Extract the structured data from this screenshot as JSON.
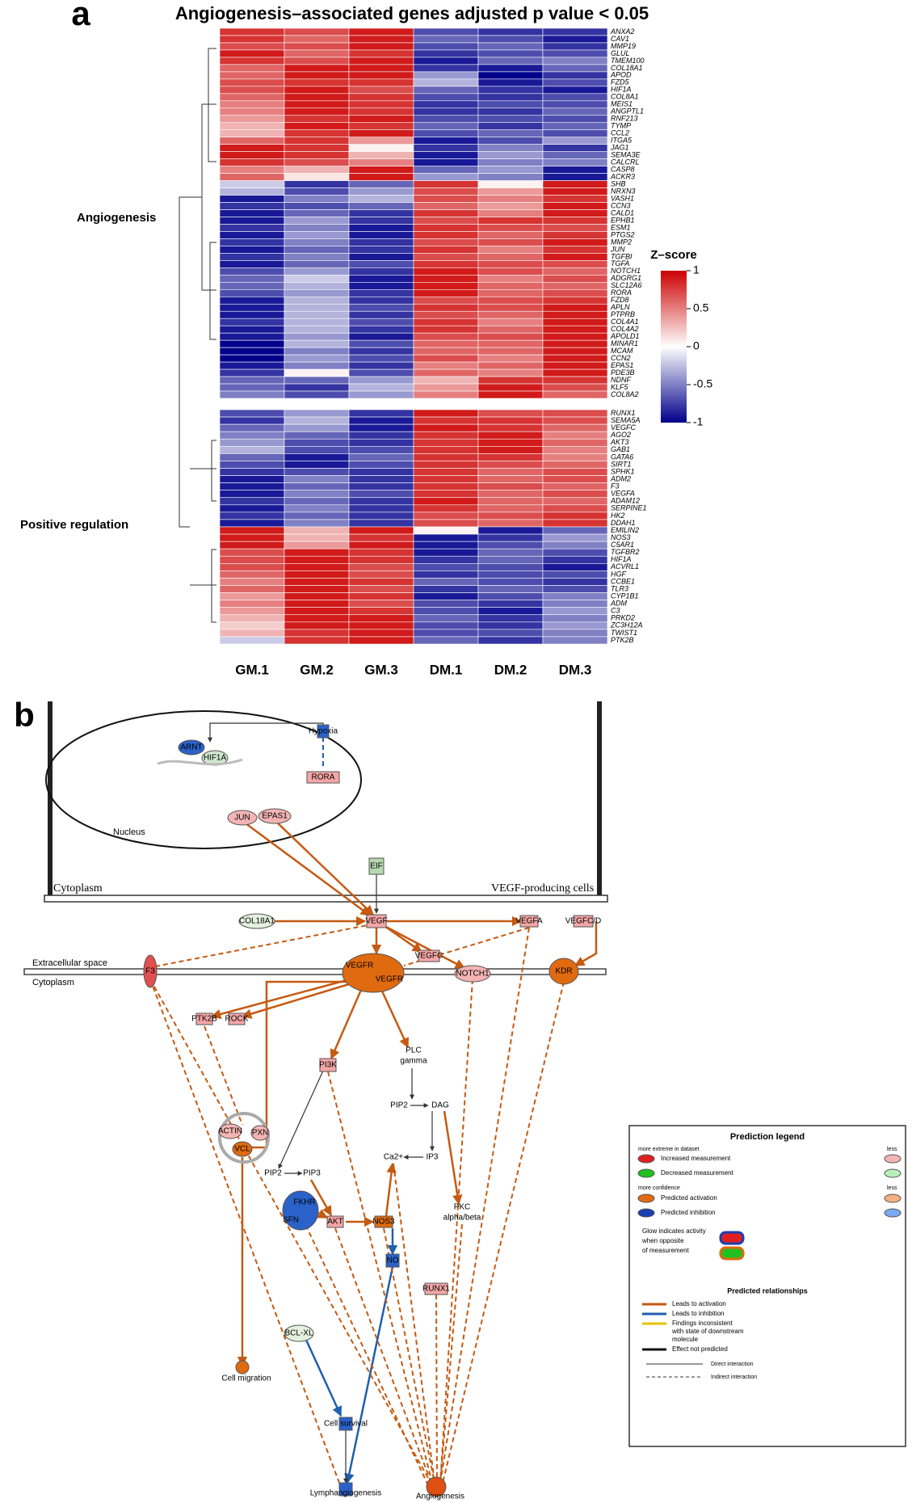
{
  "chart_data": {
    "type": "heatmap",
    "panel_label": "a",
    "title": "Angiogenesis–associated genes adjusted p value < 0.05",
    "columns": [
      "GM.1",
      "GM.2",
      "GM.3",
      "DM.1",
      "DM.2",
      "DM.3"
    ],
    "colorbar": {
      "title": "Z–score",
      "lim": [
        -1,
        1
      ],
      "ticks": [
        1,
        0.5,
        0,
        -0.5,
        -1
      ],
      "colors": [
        "#00008b",
        "#ffffff",
        "#cc0000"
      ]
    },
    "row_groups": [
      {
        "label": "Angiogenesis",
        "rows": [
          {
            "name": "ANXA2",
            "values": [
              0.8,
              0.7,
              0.9,
              -0.7,
              -0.8,
              -0.8
            ]
          },
          {
            "name": "CAV1",
            "values": [
              0.8,
              0.6,
              0.9,
              -0.6,
              -0.7,
              -0.9
            ]
          },
          {
            "name": "MMP19",
            "values": [
              0.7,
              0.7,
              0.9,
              -0.7,
              -0.6,
              -0.8
            ]
          },
          {
            "name": "GLUL",
            "values": [
              0.9,
              0.6,
              0.8,
              -0.8,
              -0.7,
              -0.7
            ]
          },
          {
            "name": "TMEM100",
            "values": [
              0.8,
              0.7,
              0.9,
              -0.9,
              -0.6,
              -0.5
            ]
          },
          {
            "name": "COL18A1",
            "values": [
              0.6,
              0.9,
              0.9,
              -0.8,
              -0.9,
              -0.6
            ]
          },
          {
            "name": "APOD",
            "values": [
              0.6,
              0.9,
              0.9,
              -0.4,
              -1,
              -0.8
            ]
          },
          {
            "name": "FZD5",
            "values": [
              0.7,
              0.8,
              0.8,
              -0.3,
              -0.9,
              -0.7
            ]
          },
          {
            "name": "HIF1A",
            "values": [
              0.7,
              0.9,
              0.7,
              -0.6,
              -0.8,
              -0.9
            ]
          },
          {
            "name": "COL8A1",
            "values": [
              0.6,
              0.9,
              0.8,
              -0.7,
              -0.8,
              -0.7
            ]
          },
          {
            "name": "MEIS1",
            "values": [
              0.5,
              0.9,
              0.8,
              -0.8,
              -0.7,
              -0.7
            ]
          },
          {
            "name": "ANGPTL1",
            "values": [
              0.5,
              0.9,
              0.8,
              -0.8,
              -0.8,
              -0.6
            ]
          },
          {
            "name": "RNF213",
            "values": [
              0.4,
              0.8,
              0.9,
              -0.7,
              -0.7,
              -0.7
            ]
          },
          {
            "name": "TYMP",
            "values": [
              0.3,
              0.9,
              0.8,
              -0.6,
              -0.8,
              -0.6
            ]
          },
          {
            "name": "CCL2",
            "values": [
              0.3,
              0.8,
              0.9,
              -0.7,
              -0.6,
              -0.7
            ]
          },
          {
            "name": "ITGA5",
            "values": [
              0.6,
              0.8,
              0.4,
              -0.9,
              -0.7,
              -0.4
            ]
          },
          {
            "name": "JAG1",
            "values": [
              0.9,
              0.8,
              0.05,
              -0.8,
              -0.5,
              -0.8
            ]
          },
          {
            "name": "SEMA3E",
            "values": [
              0.9,
              0.8,
              0.3,
              -0.9,
              -0.4,
              -0.6
            ]
          },
          {
            "name": "CALCRL",
            "values": [
              0.8,
              0.7,
              0.5,
              -0.9,
              -0.5,
              -0.5
            ]
          },
          {
            "name": "CASP8",
            "values": [
              0.5,
              0.3,
              0.9,
              -0.6,
              -0.4,
              -0.9
            ]
          },
          {
            "name": "ACKR3",
            "values": [
              0.6,
              0.1,
              0.9,
              -0.4,
              -0.5,
              -0.9
            ]
          },
          {
            "name": "SHB",
            "values": [
              -0.2,
              -0.8,
              -0.6,
              0.8,
              0.05,
              0.9
            ]
          },
          {
            "name": "NRXN3",
            "values": [
              -0.3,
              -0.7,
              -0.4,
              0.7,
              0.4,
              0.9
            ]
          },
          {
            "name": "VASH1",
            "values": [
              -0.9,
              -0.5,
              -0.3,
              0.7,
              0.5,
              0.8
            ]
          },
          {
            "name": "CCN3",
            "values": [
              -0.8,
              -0.7,
              -0.6,
              0.6,
              0.4,
              0.9
            ]
          },
          {
            "name": "CALD1",
            "values": [
              -0.9,
              -0.6,
              -0.8,
              0.8,
              0.5,
              0.9
            ]
          },
          {
            "name": "EPHB1",
            "values": [
              -0.9,
              -0.4,
              -0.8,
              0.7,
              0.8,
              0.8
            ]
          },
          {
            "name": "ESM1",
            "values": [
              -0.8,
              -0.5,
              -0.9,
              0.8,
              0.7,
              0.7
            ]
          },
          {
            "name": "PTGS2",
            "values": [
              -0.9,
              -0.4,
              -0.9,
              0.8,
              0.6,
              0.8
            ]
          },
          {
            "name": "MMP2",
            "values": [
              -0.8,
              -0.5,
              -0.8,
              0.7,
              0.7,
              0.9
            ]
          },
          {
            "name": "JUN",
            "values": [
              -0.9,
              -0.6,
              -0.8,
              0.8,
              0.5,
              0.8
            ]
          },
          {
            "name": "TGFBI",
            "values": [
              -0.8,
              -0.5,
              -0.9,
              0.7,
              0.6,
              0.9
            ]
          },
          {
            "name": "TGFA",
            "values": [
              -0.9,
              -0.6,
              -0.7,
              0.8,
              0.7,
              0.7
            ]
          },
          {
            "name": "NOTCH1",
            "values": [
              -0.7,
              -0.4,
              -0.8,
              0.9,
              0.7,
              0.6
            ]
          },
          {
            "name": "ADGRG1",
            "values": [
              -0.6,
              -0.2,
              -0.9,
              0.9,
              0.5,
              0.7
            ]
          },
          {
            "name": "SLC12A6",
            "values": [
              -0.6,
              -0.3,
              -0.9,
              0.9,
              0.6,
              0.6
            ]
          },
          {
            "name": "RORA",
            "values": [
              -0.7,
              -0.4,
              -0.8,
              0.9,
              0.6,
              0.7
            ]
          },
          {
            "name": "FZD8",
            "values": [
              -0.9,
              -0.3,
              -0.8,
              0.7,
              0.7,
              0.8
            ]
          },
          {
            "name": "APLN",
            "values": [
              -0.9,
              -0.3,
              -0.7,
              0.8,
              0.7,
              0.9
            ]
          },
          {
            "name": "PTPRB",
            "values": [
              -0.9,
              -0.3,
              -0.8,
              0.7,
              0.6,
              0.9
            ]
          },
          {
            "name": "COL4A1",
            "values": [
              -0.8,
              -0.3,
              -0.7,
              0.8,
              0.5,
              0.9
            ]
          },
          {
            "name": "COL4A2",
            "values": [
              -0.9,
              -0.3,
              -0.8,
              0.8,
              0.6,
              0.9
            ]
          },
          {
            "name": "APOLD1",
            "values": [
              -0.9,
              -0.4,
              -0.9,
              0.7,
              0.7,
              0.9
            ]
          },
          {
            "name": "MINAR1",
            "values": [
              -1,
              -0.3,
              -0.7,
              0.6,
              0.6,
              0.9
            ]
          },
          {
            "name": "MCAM",
            "values": [
              -1,
              -0.5,
              -0.8,
              0.6,
              0.6,
              0.9
            ]
          },
          {
            "name": "CCN2",
            "values": [
              -1,
              -0.4,
              -0.7,
              0.7,
              0.5,
              0.9
            ]
          },
          {
            "name": "EPAS1",
            "values": [
              -0.9,
              -0.5,
              -0.8,
              0.5,
              0.6,
              0.9
            ]
          },
          {
            "name": "PDE3B",
            "values": [
              -0.8,
              0.05,
              -0.7,
              0.6,
              0.5,
              0.9
            ]
          },
          {
            "name": "NDNF",
            "values": [
              -0.6,
              -0.6,
              -0.4,
              0.3,
              0.8,
              0.8
            ]
          },
          {
            "name": "KLF5",
            "values": [
              -0.6,
              -0.8,
              -0.3,
              0.4,
              0.9,
              0.7
            ]
          },
          {
            "name": "COL8A2",
            "values": [
              -0.5,
              -0.7,
              -0.4,
              0.5,
              0.9,
              0.6
            ]
          }
        ]
      },
      {
        "label": "Positive regulation",
        "rows": [
          {
            "name": "RUNX1",
            "values": [
              -0.7,
              -0.4,
              -0.8,
              0.9,
              0.7,
              0.7
            ]
          },
          {
            "name": "SEMA5A",
            "values": [
              -0.8,
              -0.3,
              -0.9,
              0.8,
              0.8,
              0.7
            ]
          },
          {
            "name": "VEGFC",
            "values": [
              -0.6,
              -0.4,
              -0.9,
              0.9,
              0.8,
              0.6
            ]
          },
          {
            "name": "AGO2",
            "values": [
              -0.5,
              -0.6,
              -0.8,
              0.8,
              0.9,
              0.5
            ]
          },
          {
            "name": "AKT3",
            "values": [
              -0.4,
              -0.7,
              -0.8,
              0.8,
              0.9,
              0.6
            ]
          },
          {
            "name": "GAB1",
            "values": [
              -0.3,
              -0.7,
              -0.7,
              0.8,
              0.9,
              0.5
            ]
          },
          {
            "name": "GATA6",
            "values": [
              -0.6,
              -0.9,
              -0.6,
              0.8,
              0.8,
              0.5
            ]
          },
          {
            "name": "SIRT1",
            "values": [
              -0.7,
              -0.9,
              -0.7,
              0.8,
              0.7,
              0.6
            ]
          },
          {
            "name": "SPHK1",
            "values": [
              -0.8,
              -0.7,
              -0.8,
              0.8,
              0.6,
              0.7
            ]
          },
          {
            "name": "ADM2",
            "values": [
              -0.9,
              -0.5,
              -0.8,
              0.8,
              0.6,
              0.7
            ]
          },
          {
            "name": "F3",
            "values": [
              -0.9,
              -0.6,
              -0.8,
              0.8,
              0.7,
              0.6
            ]
          },
          {
            "name": "VEGFA",
            "values": [
              -0.9,
              -0.5,
              -0.7,
              0.8,
              0.6,
              0.7
            ]
          },
          {
            "name": "ADAM12",
            "values": [
              -0.8,
              -0.6,
              -0.8,
              0.9,
              0.6,
              0.6
            ]
          },
          {
            "name": "SERPINE1",
            "values": [
              -0.9,
              -0.5,
              -0.8,
              0.8,
              0.6,
              0.7
            ]
          },
          {
            "name": "HK2",
            "values": [
              -0.8,
              -0.6,
              -0.8,
              0.7,
              0.7,
              0.8
            ]
          },
          {
            "name": "DDAH1",
            "values": [
              -0.9,
              -0.5,
              -0.8,
              0.7,
              0.6,
              0.8
            ]
          },
          {
            "name": "EMILIN2",
            "values": [
              0.9,
              0.3,
              0.9,
              0.05,
              -0.9,
              -0.6
            ]
          },
          {
            "name": "NOS3",
            "values": [
              0.9,
              0.3,
              0.8,
              -0.9,
              -0.8,
              -0.4
            ]
          },
          {
            "name": "C5AR1",
            "values": [
              0.9,
              0.4,
              0.9,
              -0.9,
              -0.7,
              -0.5
            ]
          },
          {
            "name": "TGFBR2",
            "values": [
              0.7,
              0.9,
              0.8,
              -0.9,
              -0.6,
              -0.7
            ]
          },
          {
            "name": "HIF1A",
            "values": [
              0.7,
              0.9,
              0.8,
              -0.8,
              -0.6,
              -0.8
            ]
          },
          {
            "name": "ACVRL1",
            "values": [
              0.7,
              0.9,
              0.7,
              -0.7,
              -0.7,
              -0.9
            ]
          },
          {
            "name": "HGF",
            "values": [
              0.6,
              0.9,
              0.7,
              -0.8,
              -0.7,
              -0.7
            ]
          },
          {
            "name": "CCBE1",
            "values": [
              0.5,
              0.9,
              0.8,
              -0.6,
              -0.7,
              -0.8
            ]
          },
          {
            "name": "TLR3",
            "values": [
              0.6,
              0.9,
              0.7,
              -0.8,
              -0.6,
              -0.7
            ]
          },
          {
            "name": "CYP1B1",
            "values": [
              0.4,
              0.9,
              0.8,
              -0.9,
              -0.7,
              -0.5
            ]
          },
          {
            "name": "ADM",
            "values": [
              0.5,
              0.9,
              0.7,
              -0.7,
              -0.8,
              -0.5
            ]
          },
          {
            "name": "C3",
            "values": [
              0.4,
              0.9,
              0.8,
              -0.7,
              -0.9,
              -0.4
            ]
          },
          {
            "name": "PRKD2",
            "values": [
              0.3,
              0.9,
              0.9,
              -0.6,
              -0.8,
              -0.5
            ]
          },
          {
            "name": "ZC3H12A",
            "values": [
              0.2,
              0.9,
              0.9,
              -0.7,
              -0.8,
              -0.4
            ]
          },
          {
            "name": "TWIST1",
            "values": [
              0.3,
              0.8,
              0.9,
              -0.7,
              -0.7,
              -0.5
            ]
          },
          {
            "name": "PTK2B",
            "values": [
              -0.2,
              0.8,
              0.9,
              -0.6,
              -0.8,
              -0.5
            ]
          }
        ]
      }
    ]
  },
  "panel_b": {
    "label": "b",
    "compartments": [
      "Nucleus",
      "Cytoplasm",
      "VEGF-producing cells",
      "Extracellular space",
      "Cytoplasm"
    ],
    "nodes": [
      "ARNT",
      "HIF1A",
      "Hypoxia",
      "RORA",
      "JUN",
      "EPAS1",
      "EIF",
      "COL18A1",
      "VEGF",
      "VEGFA",
      "VEGFC/D",
      "F3",
      "VEGFR",
      "VEGFR",
      "VEGFC",
      "NOTCH1",
      "KDR",
      "PTK2B",
      "ROCK",
      "PI3K",
      [
        "PLC",
        "gamma"
      ],
      "ACTIN",
      "PXN",
      "VCL",
      "PIP2",
      "PIP3",
      "PIP2",
      "DAG",
      "Ca2+",
      "IP3",
      "FKHR",
      "SFN",
      "AKT",
      "NOS3",
      [
        "PKC",
        "alpha/beta"
      ],
      "NO",
      "RUNX1",
      "BCL-XL",
      "Cell migration",
      "Cell survival",
      "Lymphangiogenesis",
      "Angiogenesis"
    ],
    "legend": {
      "title": "Prediction legend",
      "measurement_header": [
        "more extreme in dataset",
        "less"
      ],
      "measurement": [
        "Increased measurement",
        "Decreased measurement"
      ],
      "confidence_header": [
        "more confidence",
        "less"
      ],
      "prediction": [
        "Predicted activation",
        "Predicted inhibition"
      ],
      "glow": [
        "Glow indicates activity",
        "when opposite",
        "of measurement"
      ],
      "relationships_title": "Predicted relationships",
      "relationships": [
        [
          "Leads to activation"
        ],
        [
          "Leads to inhibition"
        ],
        [
          "Findings inconsistent",
          "with state of downstream",
          "molecule"
        ],
        [
          "Effect not predicted"
        ]
      ],
      "interactions": [
        "Direct interaction",
        "Indirect interaction"
      ]
    }
  }
}
